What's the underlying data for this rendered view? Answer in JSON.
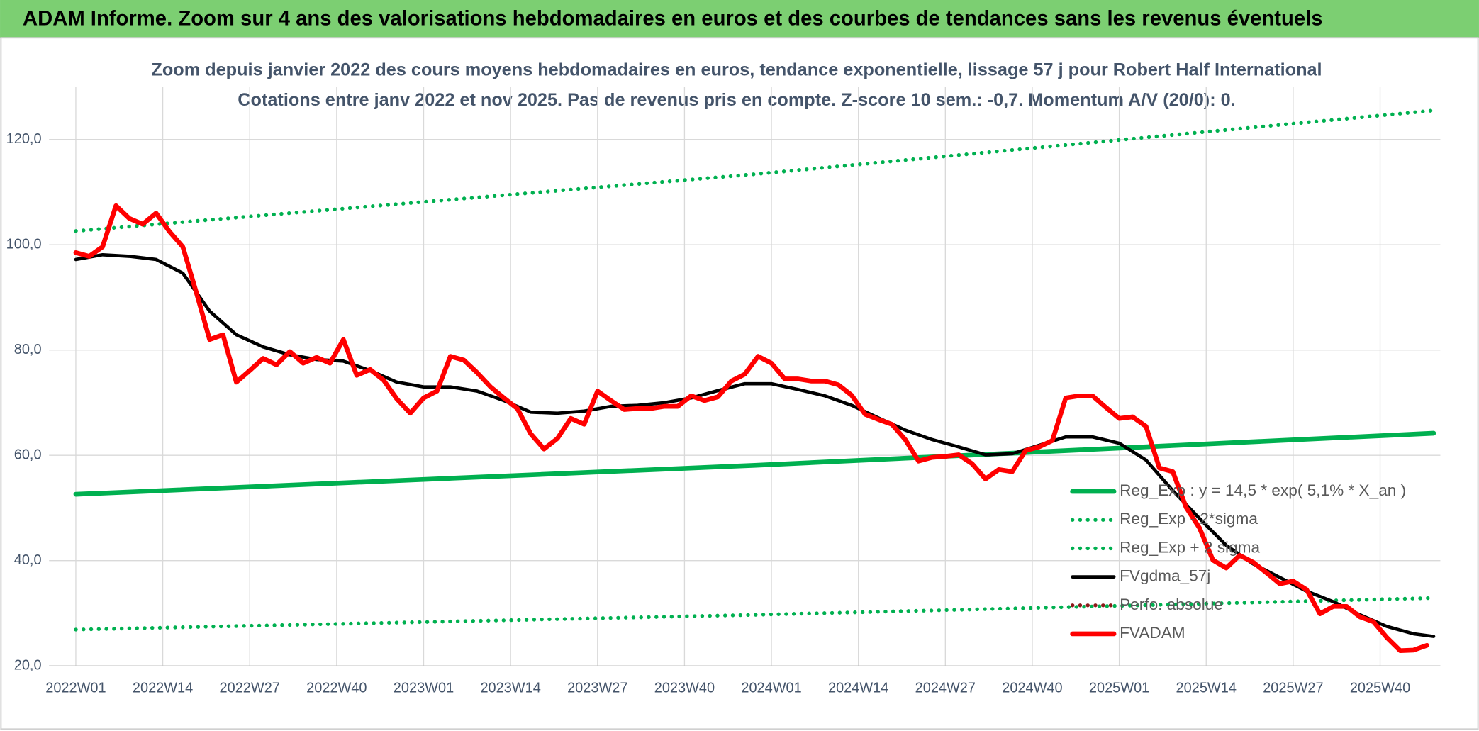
{
  "header": {
    "title": "ADAM Informe. Zoom sur 4 ans des valorisations hebdomadaires en euros et des courbes de tendances sans les revenus éventuels"
  },
  "chart_data": {
    "type": "line",
    "title": "Zoom depuis janvier 2022  des cours moyens hebdomadaires en euros, tendance exponentielle, lissage 57 j pour Robert Half International",
    "subtitle": "Cotations entre janv 2022 et nov 2025. Pas de revenus pris en compte. Z-score 10 sem.: -0,7. Momentum A/V (20/0): 0.",
    "xlim": [
      -4,
      204
    ],
    "xticks": [
      {
        "value": 0,
        "label": "2022W01"
      },
      {
        "value": 13,
        "label": "2022W14"
      },
      {
        "value": 26,
        "label": "2022W27"
      },
      {
        "value": 39,
        "label": "2022W40"
      },
      {
        "value": 52,
        "label": "2023W01"
      },
      {
        "value": 65,
        "label": "2023W14"
      },
      {
        "value": 78,
        "label": "2023W27"
      },
      {
        "value": 91,
        "label": "2023W40"
      },
      {
        "value": 104,
        "label": "2024W01"
      },
      {
        "value": 117,
        "label": "2024W14"
      },
      {
        "value": 130,
        "label": "2024W27"
      },
      {
        "value": 143,
        "label": "2024W40"
      },
      {
        "value": 156,
        "label": "2025W01"
      },
      {
        "value": 169,
        "label": "2025W14"
      },
      {
        "value": 182,
        "label": "2025W27"
      },
      {
        "value": 195,
        "label": "2025W40"
      }
    ],
    "ylim": [
      20,
      130
    ],
    "yticks": [
      {
        "value": 20,
        "label": "20,0"
      },
      {
        "value": 40,
        "label": "40,0"
      },
      {
        "value": 60,
        "label": "60,0"
      },
      {
        "value": 80,
        "label": "80,0"
      },
      {
        "value": 100,
        "label": "100,0"
      },
      {
        "value": 120,
        "label": "120,0"
      }
    ],
    "grid": true,
    "legend": "lower right",
    "series": [
      {
        "name": "Reg_Exp : y = 14,5 * exp( 5,1% *  X_an )",
        "color": "#00b050",
        "dash": "solid",
        "x": [
          0,
          101.5,
          203
        ],
        "values": [
          52.6,
          58.1,
          64.2
        ]
      },
      {
        "name": "Reg_Exp - 2*sigma",
        "color": "#00b050",
        "dash": "dotted",
        "x": [
          0,
          101.5,
          203
        ],
        "values": [
          26.9,
          29.7,
          32.9
        ]
      },
      {
        "name": "Reg_Exp + 2 sigma",
        "color": "#00b050",
        "dash": "dotted",
        "x": [
          0,
          101.5,
          203
        ],
        "values": [
          102.6,
          113.4,
          125.5
        ]
      },
      {
        "name": "FVgdma_57j",
        "color": "#000000",
        "dash": "solid",
        "x": [
          0,
          4,
          8,
          12,
          16,
          20,
          24,
          28,
          32,
          36,
          40,
          44,
          48,
          52,
          56,
          60,
          64,
          68,
          72,
          76,
          80,
          84,
          88,
          92,
          96,
          100,
          104,
          108,
          112,
          116,
          120,
          124,
          128,
          132,
          136,
          140,
          144,
          148,
          152,
          156,
          160,
          164,
          168,
          172,
          176,
          180,
          184,
          188,
          192,
          196,
          200,
          203
        ],
        "values": [
          97.2,
          98.1,
          97.8,
          97.2,
          94.6,
          87.4,
          82.9,
          80.6,
          79.1,
          78.2,
          77.9,
          76.1,
          73.9,
          73.0,
          73.0,
          72.2,
          70.4,
          68.2,
          68.0,
          68.4,
          69.3,
          69.5,
          70.0,
          70.9,
          72.3,
          73.6,
          73.6,
          72.5,
          71.3,
          69.5,
          67.1,
          64.8,
          63.0,
          61.6,
          60.1,
          60.3,
          61.9,
          63.5,
          63.5,
          62.3,
          59.1,
          53.3,
          48.0,
          42.9,
          39.4,
          36.8,
          34.2,
          32.2,
          29.7,
          27.5,
          26.1,
          25.6
        ]
      },
      {
        "name": "Perfo. absolue",
        "color": "#8b1a1a",
        "dash": "dotted"
      },
      {
        "name": "FVADAM",
        "color": "#ff0000",
        "dash": "solid",
        "x": [
          0,
          2,
          4,
          6,
          8,
          10,
          12,
          14,
          16,
          18,
          20,
          22,
          24,
          26,
          28,
          30,
          32,
          34,
          36,
          38,
          40,
          42,
          44,
          46,
          48,
          50,
          52,
          54,
          56,
          58,
          60,
          62,
          64,
          66,
          68,
          70,
          72,
          74,
          76,
          78,
          80,
          82,
          84,
          86,
          88,
          90,
          92,
          94,
          96,
          98,
          100,
          102,
          104,
          106,
          108,
          110,
          112,
          114,
          116,
          118,
          120,
          122,
          124,
          126,
          128,
          130,
          132,
          134,
          136,
          138,
          140,
          142,
          144,
          146,
          148,
          150,
          152,
          154,
          156,
          158,
          160,
          162,
          164,
          166,
          168,
          170,
          172,
          174,
          176,
          178,
          180,
          182,
          184,
          186,
          188,
          190,
          192,
          194,
          196,
          198,
          200,
          202
        ],
        "values": [
          98.5,
          97.8,
          99.6,
          107.4,
          105.0,
          103.9,
          106.0,
          102.5,
          99.6,
          91.0,
          82.0,
          82.9,
          73.9,
          76.1,
          78.4,
          77.2,
          79.7,
          77.5,
          78.6,
          77.5,
          82.0,
          75.2,
          76.3,
          74.3,
          70.7,
          68.0,
          70.9,
          72.2,
          78.8,
          78.1,
          75.7,
          73.0,
          70.9,
          68.9,
          64.1,
          61.2,
          63.2,
          67.0,
          65.9,
          72.2,
          70.4,
          68.7,
          68.9,
          68.9,
          69.3,
          69.3,
          71.3,
          70.4,
          71.1,
          74.1,
          75.4,
          78.8,
          77.5,
          74.5,
          74.5,
          74.1,
          74.1,
          73.4,
          71.4,
          67.8,
          66.8,
          65.9,
          63.0,
          58.9,
          59.6,
          59.8,
          60.1,
          58.4,
          55.5,
          57.3,
          56.9,
          60.9,
          61.6,
          62.8,
          70.9,
          71.3,
          71.3,
          69.1,
          67.0,
          67.3,
          65.5,
          57.6,
          56.9,
          50.1,
          46.2,
          40.1,
          38.6,
          41.0,
          39.7,
          37.7,
          35.6,
          36.1,
          34.5,
          29.9,
          31.3,
          31.3,
          29.3,
          28.4,
          25.4,
          22.9,
          23.0,
          23.9
        ]
      }
    ]
  }
}
